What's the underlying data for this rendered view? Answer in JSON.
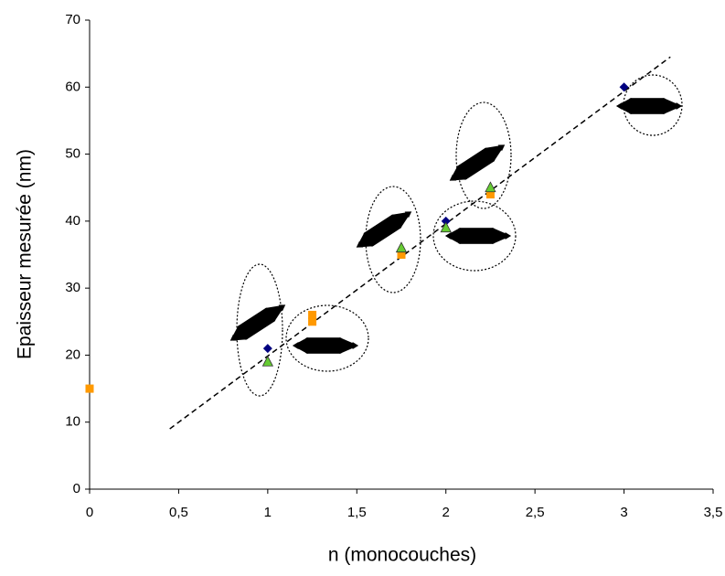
{
  "chart_data": {
    "type": "scatter",
    "x_label": "n (monocouches)",
    "y_label": "Epaisseur mesurée (nm)",
    "xlim": [
      0,
      3.5
    ],
    "xticks": [
      0,
      {
        "value": 0.5,
        "label": "0,5"
      },
      1,
      {
        "value": 1.5,
        "label": "1,5"
      },
      2,
      {
        "value": 2.5,
        "label": "2,5"
      },
      3,
      {
        "value": 3.5,
        "label": "3,5"
      }
    ],
    "ylim": [
      0,
      70
    ],
    "yticks": [
      0,
      10,
      20,
      30,
      40,
      50,
      60,
      70
    ],
    "grid": false,
    "series": [
      {
        "color": "#000080",
        "marker": "diamond",
        "x": [
          1,
          2,
          3
        ],
        "values": [
          21,
          40,
          60
        ]
      },
      {
        "color": "#ff9900",
        "marker": "square",
        "x": [
          0,
          1.25,
          1.25,
          1.75,
          2.25
        ],
        "values": [
          15,
          26,
          25,
          35,
          44
        ]
      },
      {
        "color": "#66cc33",
        "marker": "triangle",
        "x": [
          1,
          1.75,
          2,
          2.25
        ],
        "values": [
          19,
          36,
          39,
          45
        ]
      }
    ],
    "trendline": {
      "color": "#000000",
      "x": [
        0.45,
        3.26
      ],
      "values": [
        9,
        64.5
      ]
    }
  }
}
